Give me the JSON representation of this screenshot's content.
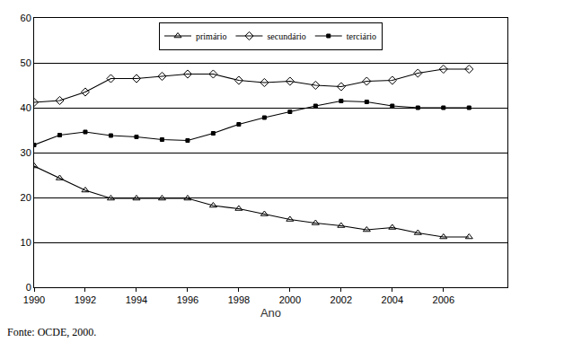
{
  "chart_data": {
    "type": "line",
    "x_label": "Ano",
    "source": "Fonte: OCDE, 2000.",
    "x": [
      1990,
      1991,
      1992,
      1993,
      1994,
      1995,
      1996,
      1997,
      1998,
      1999,
      2000,
      2001,
      2002,
      2003,
      2004,
      2005,
      2006,
      2007
    ],
    "series": [
      {
        "name": "primário",
        "color": "#000000",
        "marker": "triangle-up-open",
        "values": [
          27.0,
          24.3,
          21.6,
          19.8,
          19.8,
          19.8,
          19.8,
          18.2,
          17.5,
          16.3,
          15.1,
          14.3,
          13.7,
          12.8,
          13.3,
          12.1,
          11.2,
          11.2
        ]
      },
      {
        "name": "secundário",
        "color": "#000000",
        "marker": "diamond-open",
        "values": [
          41.2,
          41.6,
          43.5,
          46.5,
          46.5,
          47.0,
          47.5,
          47.5,
          46.1,
          45.6,
          45.9,
          45.0,
          44.7,
          45.9,
          46.1,
          47.7,
          48.6,
          48.6
        ]
      },
      {
        "name": "terciário",
        "color": "#000000",
        "marker": "square",
        "values": [
          31.7,
          33.9,
          34.6,
          33.8,
          33.5,
          32.9,
          32.7,
          34.3,
          36.3,
          37.8,
          39.1,
          40.4,
          41.5,
          41.3,
          40.4,
          40.0,
          40.0,
          40.0
        ]
      }
    ],
    "xlim": [
      1990,
      2008.5
    ],
    "xticks": [
      1990,
      1992,
      1994,
      1996,
      1998,
      2000,
      2002,
      2004,
      2006
    ],
    "ylim": [
      0,
      60
    ],
    "yticks": [
      0,
      10,
      20,
      30,
      40,
      50,
      60
    ],
    "grid": true,
    "legend": "top"
  }
}
